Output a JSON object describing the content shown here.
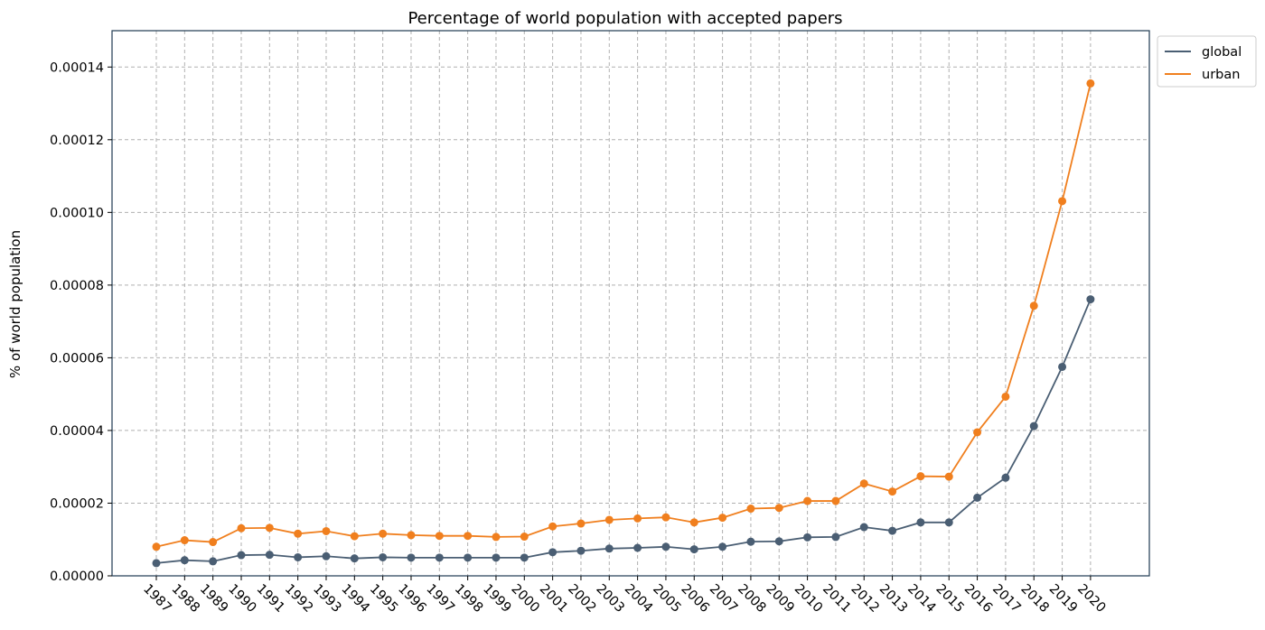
{
  "chart_data": {
    "type": "line",
    "title": "Percentage of world population with accepted papers",
    "xlabel": "",
    "ylabel": "% of world population",
    "x": [
      "1987",
      "1988",
      "1989",
      "1990",
      "1991",
      "1992",
      "1993",
      "1994",
      "1995",
      "1996",
      "1997",
      "1998",
      "1999",
      "2000",
      "2001",
      "2002",
      "2003",
      "2004",
      "2005",
      "2006",
      "2007",
      "2008",
      "2009",
      "2010",
      "2011",
      "2012",
      "2013",
      "2014",
      "2015",
      "2016",
      "2017",
      "2018",
      "2019",
      "2020"
    ],
    "ylim": [
      0,
      0.00015
    ],
    "yticks": [
      "0.00000",
      "0.00002",
      "0.00004",
      "0.00006",
      "0.00008",
      "0.00010",
      "0.00012",
      "0.00014"
    ],
    "ytick_values": [
      0,
      2e-05,
      4e-05,
      6e-05,
      8e-05,
      0.0001,
      0.00012,
      0.00014
    ],
    "grid": true,
    "legend_position": "upper-right-outside",
    "series": [
      {
        "name": "global",
        "color": "#4a5e73",
        "values": [
          3.5e-06,
          4.3e-06,
          4e-06,
          5.7e-06,
          5.8e-06,
          5.1e-06,
          5.4e-06,
          4.8e-06,
          5.1e-06,
          5e-06,
          5e-06,
          5e-06,
          5e-06,
          5e-06,
          6.5e-06,
          6.9e-06,
          7.5e-06,
          7.7e-06,
          8e-06,
          7.3e-06,
          8e-06,
          9.4e-06,
          9.5e-06,
          1.06e-05,
          1.07e-05,
          1.34e-05,
          1.24e-05,
          1.47e-05,
          1.47e-05,
          2.15e-05,
          2.7e-05,
          4.12e-05,
          5.75e-05,
          7.61e-05
        ]
      },
      {
        "name": "urban",
        "color": "#f07f1e",
        "values": [
          8e-06,
          9.8e-06,
          9.3e-06,
          1.31e-05,
          1.32e-05,
          1.16e-05,
          1.23e-05,
          1.09e-05,
          1.16e-05,
          1.12e-05,
          1.1e-05,
          1.1e-05,
          1.07e-05,
          1.08e-05,
          1.36e-05,
          1.44e-05,
          1.54e-05,
          1.58e-05,
          1.61e-05,
          1.47e-05,
          1.6e-05,
          1.85e-05,
          1.87e-05,
          2.06e-05,
          2.06e-05,
          2.54e-05,
          2.32e-05,
          2.74e-05,
          2.73e-05,
          3.95e-05,
          4.93e-05,
          7.43e-05,
          0.0001031,
          0.0001355
        ]
      }
    ]
  }
}
